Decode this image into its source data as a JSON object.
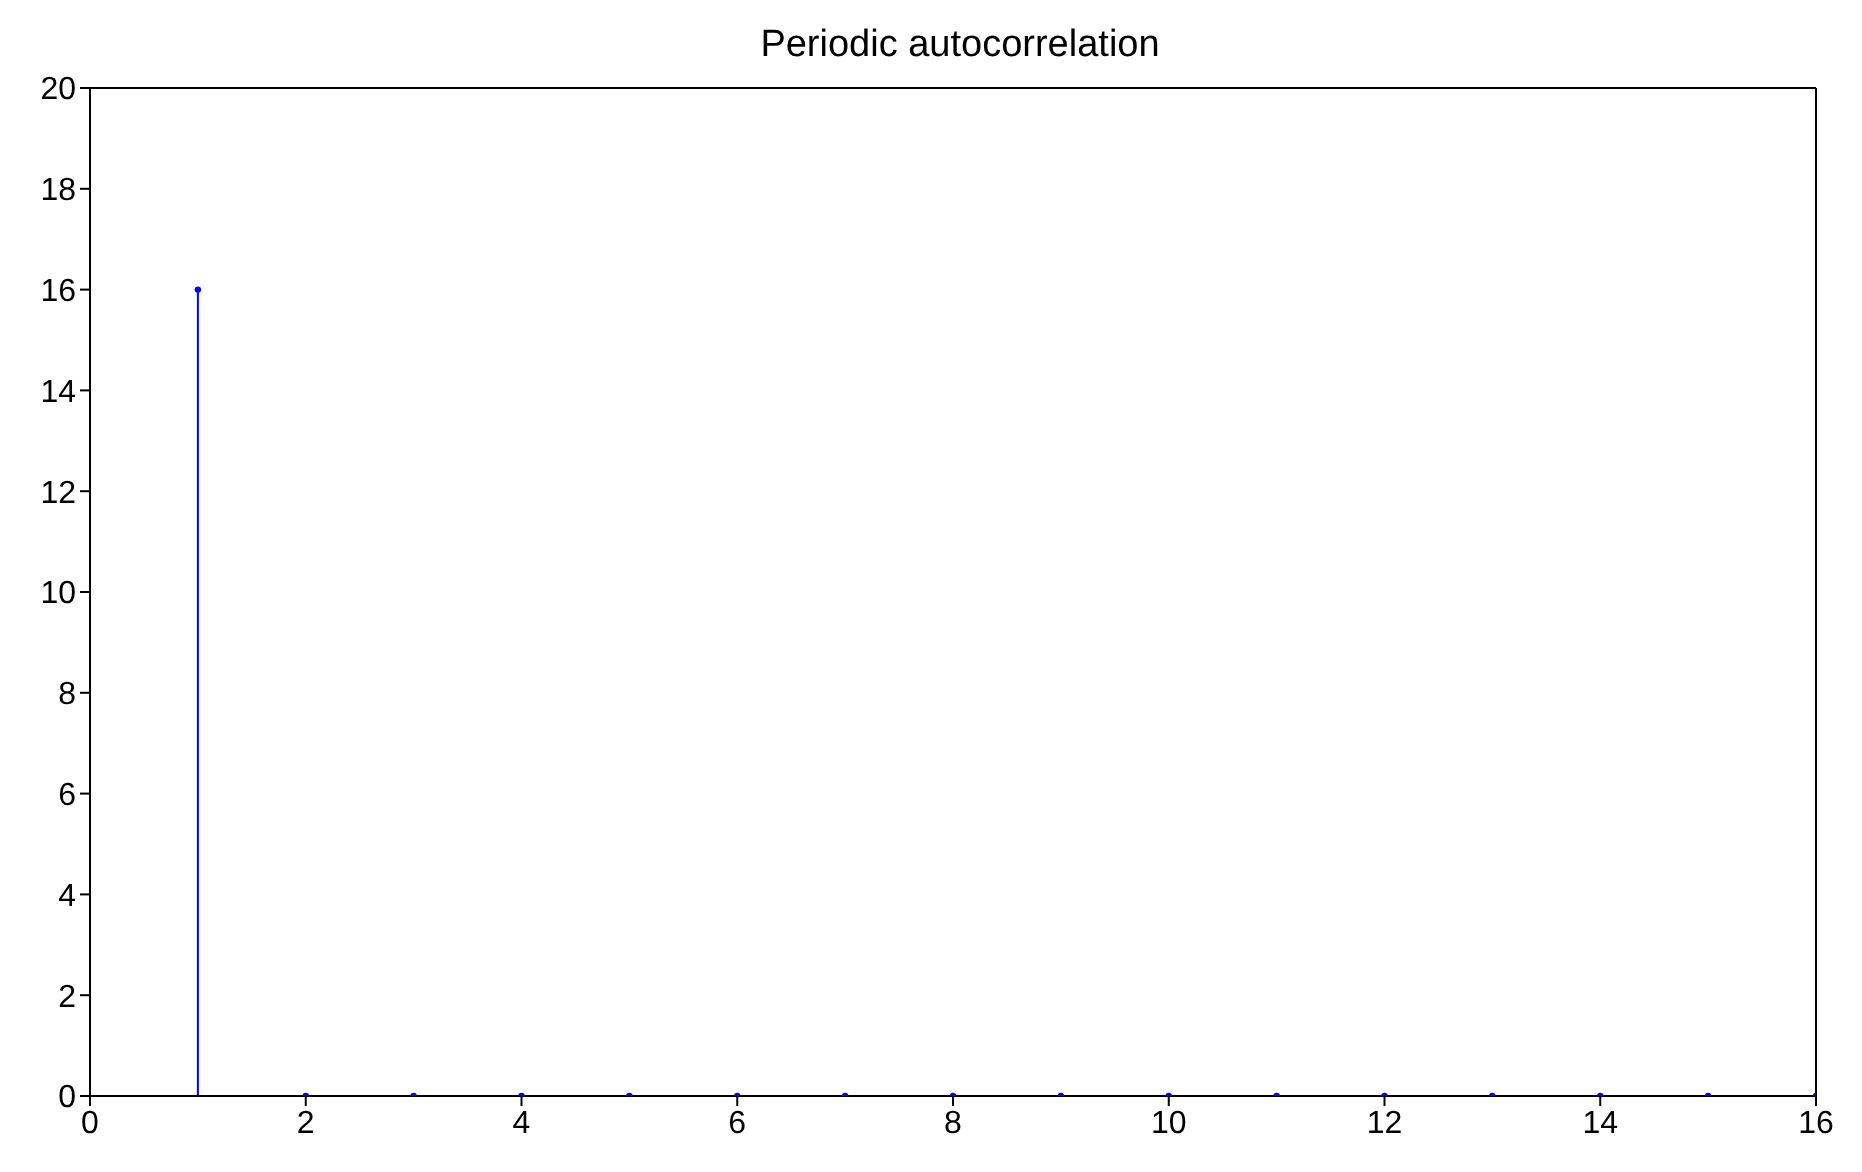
{
  "chart_data": {
    "type": "lollipop",
    "title": "Periodic autocorrelation",
    "x": [
      1,
      2,
      3,
      4,
      5,
      6,
      7,
      8,
      9,
      10,
      11,
      12,
      13,
      14,
      15,
      16
    ],
    "values": [
      16,
      0,
      0,
      0,
      0,
      0,
      0,
      0,
      0,
      0,
      0,
      0,
      0,
      0,
      0,
      0
    ],
    "color": "#0000ff",
    "marker": "circle",
    "xlim": [
      0,
      16
    ],
    "xticks": [
      0,
      2,
      4,
      6,
      8,
      10,
      12,
      14,
      16
    ],
    "ylim": [
      0,
      20
    ],
    "yticks": [
      0,
      2,
      4,
      6,
      8,
      10,
      12,
      14,
      16,
      18,
      20
    ],
    "grid": false
  }
}
